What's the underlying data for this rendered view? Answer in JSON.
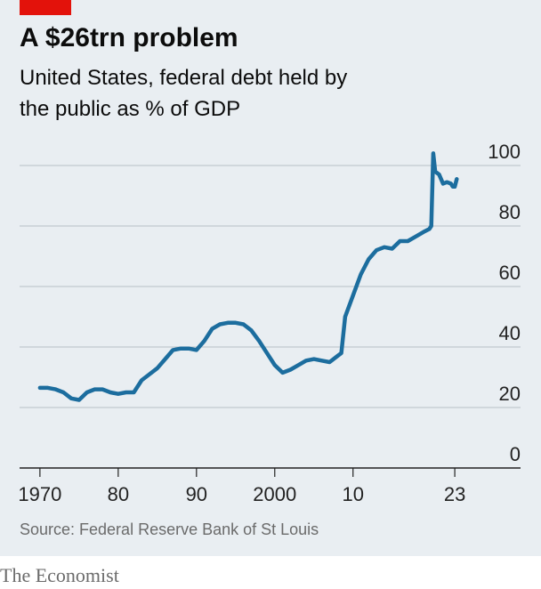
{
  "chart_data": {
    "type": "line",
    "title": "A $26trn problem",
    "subtitle": "United States, federal debt held by the public as % of GDP",
    "source": "Source: Federal Reserve Bank of St Louis",
    "brand": "The Economist",
    "x": [
      1970,
      1971,
      1972,
      1973,
      1974,
      1975,
      1976,
      1977,
      1978,
      1979,
      1980,
      1981,
      1982,
      1983,
      1984,
      1985,
      1986,
      1987,
      1988,
      1989,
      1990,
      1991,
      1992,
      1993,
      1994,
      1995,
      1996,
      1997,
      1998,
      1999,
      2000,
      2001,
      2002,
      2003,
      2004,
      2005,
      2006,
      2007,
      2008,
      2008.5,
      2009,
      2010,
      2011,
      2012,
      2013,
      2014,
      2015,
      2016,
      2017,
      2018,
      2019,
      2019.75,
      2020,
      2020.25,
      2020.5,
      2021,
      2021.5,
      2022,
      2022.5,
      2022.75,
      2023,
      2023.25
    ],
    "series": [
      {
        "name": "Federal debt held by the public, % of GDP",
        "color": "#1c6d9e",
        "values": [
          26.5,
          26.5,
          26,
          25,
          23,
          22.5,
          25,
          26,
          26,
          25,
          24.5,
          25,
          25,
          29,
          31,
          33,
          36,
          39,
          39.5,
          39.5,
          39,
          42,
          46,
          47.5,
          48,
          48,
          47.5,
          45.5,
          42,
          38,
          34,
          31.5,
          32.5,
          34,
          35.5,
          36,
          35.5,
          35,
          37,
          38,
          50,
          57,
          64,
          69,
          72,
          73,
          72.5,
          75,
          75,
          76.5,
          78,
          79,
          80,
          104,
          98,
          97,
          94,
          94.5,
          94,
          93,
          93,
          95.5
        ]
      }
    ],
    "xlim": [
      1967.4,
      2031.4
    ],
    "ylim": [
      0,
      100
    ],
    "xticks": [
      1970,
      {
        "value": 1980,
        "label": "80"
      },
      {
        "value": 1990,
        "label": "90"
      },
      2000,
      {
        "value": 2010,
        "label": "10"
      },
      {
        "value": 2023,
        "label": "23"
      }
    ],
    "yticks": [
      0,
      20,
      40,
      60,
      80,
      100
    ],
    "grid": true
  }
}
